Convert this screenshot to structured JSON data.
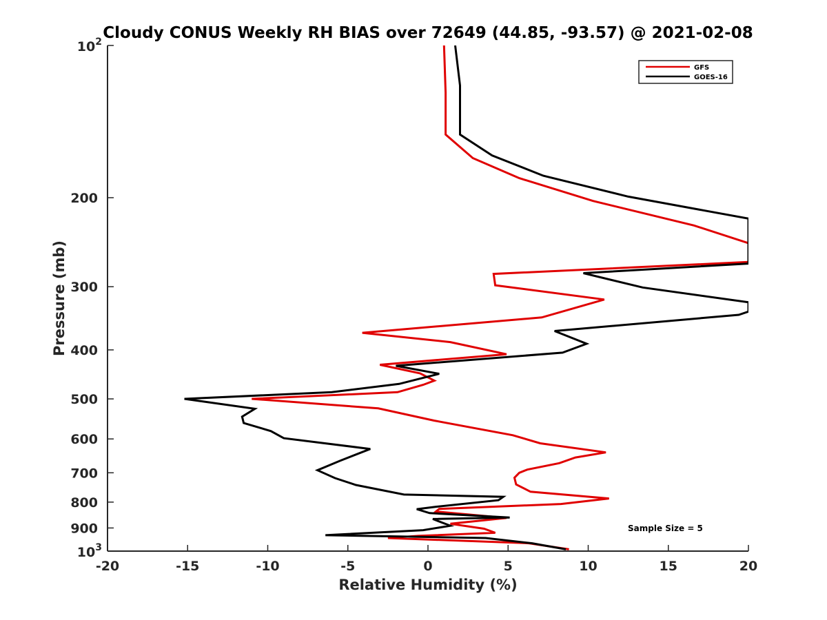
{
  "chart_data": {
    "type": "line",
    "title": "Cloudy CONUS Weekly RH BIAS over 72649 (44.85, -93.57) @ 2021-02-08",
    "xlabel": "Relative Humidity (%)",
    "ylabel": "Pressure (mb)",
    "xlim": [
      -20,
      20
    ],
    "ylim": [
      100,
      1000
    ],
    "y_scale": "log",
    "y_reversed": true,
    "grid": false,
    "legend_position": "top-right",
    "x_ticks": [
      "-20",
      "-15",
      "-10",
      "-5",
      "0",
      "5",
      "10",
      "15",
      "20"
    ],
    "y_ticks": [
      {
        "value": 100,
        "base": "10",
        "exp": "2"
      },
      {
        "value": 200,
        "label": "200"
      },
      {
        "value": 300,
        "label": "300"
      },
      {
        "value": 400,
        "label": "400"
      },
      {
        "value": 500,
        "label": "500"
      },
      {
        "value": 600,
        "label": "600"
      },
      {
        "value": 700,
        "label": "700"
      },
      {
        "value": 800,
        "label": "800"
      },
      {
        "value": 900,
        "label": "900"
      },
      {
        "value": 1000,
        "base": "10",
        "exp": "3"
      }
    ],
    "annotation": "Sample Size = 5",
    "series": [
      {
        "name": "GFS",
        "color": "#e00000",
        "points": [
          [
            1.0,
            100
          ],
          [
            1.1,
            124
          ],
          [
            1.1,
            150
          ],
          [
            2.8,
            167
          ],
          [
            5.7,
            183
          ],
          [
            10.3,
            203
          ],
          [
            16.6,
            227
          ],
          [
            20.0,
            246
          ],
          [
            20.0,
            268
          ],
          [
            4.1,
            283
          ],
          [
            4.2,
            298
          ],
          [
            11.0,
            318
          ],
          [
            7.1,
            345
          ],
          [
            -4.1,
            370
          ],
          [
            1.4,
            386
          ],
          [
            4.9,
            408
          ],
          [
            -3.0,
            428
          ],
          [
            -0.5,
            445
          ],
          [
            0.4,
            460
          ],
          [
            -0.3,
            469
          ],
          [
            -1.9,
            485
          ],
          [
            -11.0,
            500
          ],
          [
            -3.1,
            522
          ],
          [
            0.4,
            552
          ],
          [
            5.3,
            590
          ],
          [
            7.0,
            612
          ],
          [
            11.1,
            638
          ],
          [
            9.2,
            653
          ],
          [
            8.2,
            670
          ],
          [
            6.2,
            690
          ],
          [
            5.7,
            700
          ],
          [
            5.4,
            716
          ],
          [
            5.5,
            738
          ],
          [
            6.4,
            763
          ],
          [
            11.3,
            787
          ],
          [
            8.3,
            807
          ],
          [
            0.7,
            825
          ],
          [
            0.5,
            835
          ],
          [
            4.9,
            860
          ],
          [
            1.4,
            883
          ],
          [
            3.5,
            903
          ],
          [
            4.2,
            920
          ],
          [
            -0.6,
            933
          ],
          [
            -2.5,
            942
          ],
          [
            6.3,
            965
          ],
          [
            8.8,
            992
          ]
        ]
      },
      {
        "name": "GOES-16",
        "color": "#000000",
        "points": [
          [
            1.7,
            100
          ],
          [
            2.0,
            120
          ],
          [
            2.0,
            150
          ],
          [
            4.0,
            165
          ],
          [
            7.2,
            181
          ],
          [
            12.5,
            199
          ],
          [
            20.0,
            220
          ],
          [
            20.0,
            270
          ],
          [
            9.7,
            282
          ],
          [
            13.4,
            301
          ],
          [
            20.0,
            322
          ],
          [
            20.0,
            336
          ],
          [
            19.4,
            341
          ],
          [
            7.9,
            367
          ],
          [
            9.9,
            389
          ],
          [
            8.4,
            405
          ],
          [
            -2.0,
            430
          ],
          [
            0.7,
            446
          ],
          [
            -1.8,
            467
          ],
          [
            -6.0,
            485
          ],
          [
            -15.2,
            500
          ],
          [
            -10.8,
            523
          ],
          [
            -11.6,
            542
          ],
          [
            -11.5,
            558
          ],
          [
            -9.8,
            579
          ],
          [
            -9.0,
            598
          ],
          [
            -3.6,
            628
          ],
          [
            -5.5,
            663
          ],
          [
            -6.9,
            692
          ],
          [
            -5.8,
            717
          ],
          [
            -4.5,
            740
          ],
          [
            -1.5,
            773
          ],
          [
            4.7,
            781
          ],
          [
            4.4,
            793
          ],
          [
            0.5,
            817
          ],
          [
            -0.7,
            826
          ],
          [
            0.1,
            841
          ],
          [
            5.1,
            858
          ],
          [
            0.3,
            864
          ],
          [
            1.4,
            891
          ],
          [
            -0.3,
            909
          ],
          [
            -6.4,
            930
          ],
          [
            3.6,
            942
          ],
          [
            6.5,
            965
          ],
          [
            8.6,
            992
          ]
        ]
      }
    ]
  }
}
